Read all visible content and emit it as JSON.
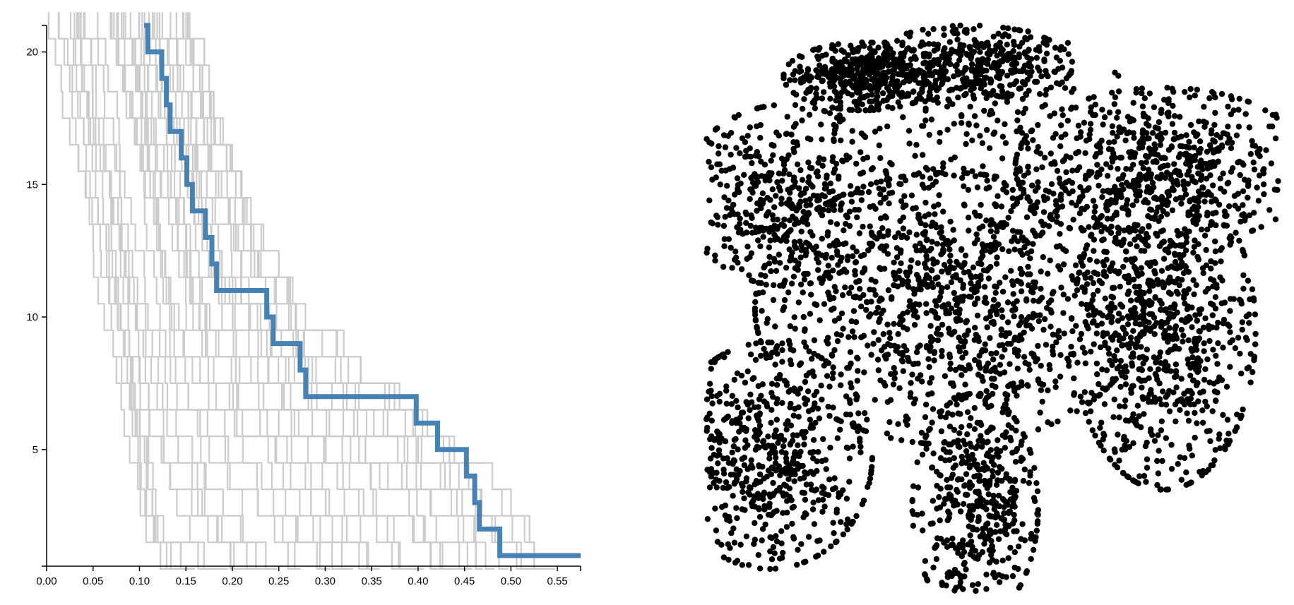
{
  "chart_data": [
    {
      "type": "step-line",
      "description_visible": "Persistence-style staircase plot: many light gray step traces with one highlighted blue trace",
      "title": "",
      "xlabel": "",
      "ylabel": "",
      "xlim": [
        0.0,
        0.575
      ],
      "ylim": [
        0.6,
        21.0
      ],
      "x_ticks": [
        0.0,
        0.05,
        0.1,
        0.15,
        0.2,
        0.25,
        0.3,
        0.35,
        0.4,
        0.45,
        0.5,
        0.55
      ],
      "x_tick_labels": [
        "0.00",
        "0.05",
        "0.10",
        "0.15",
        "0.20",
        "0.25",
        "0.30",
        "0.35",
        "0.40",
        "0.45",
        "0.50",
        "0.55"
      ],
      "y_ticks": [
        5,
        10,
        15,
        20
      ],
      "y_tick_labels": [
        "5",
        "10",
        "15",
        "20"
      ],
      "grid": false,
      "legend": "none",
      "colors": {
        "background_traces": "#cccccc",
        "highlight_trace": "#4682b4",
        "axis": "#000000"
      },
      "highlight_series": {
        "x": [
          0.105,
          0.109,
          0.109,
          0.124,
          0.124,
          0.129,
          0.129,
          0.133,
          0.133,
          0.145,
          0.145,
          0.151,
          0.151,
          0.157,
          0.157,
          0.171,
          0.171,
          0.178,
          0.178,
          0.183,
          0.183,
          0.237,
          0.237,
          0.244,
          0.244,
          0.273,
          0.273,
          0.279,
          0.279,
          0.398,
          0.398,
          0.421,
          0.421,
          0.452,
          0.452,
          0.461,
          0.461,
          0.466,
          0.466,
          0.488,
          0.488,
          0.575
        ],
        "y": [
          21.0,
          21.0,
          20.0,
          20.0,
          19.0,
          19.0,
          18.0,
          18.0,
          17.0,
          17.0,
          16.0,
          16.0,
          15.0,
          15.0,
          14.0,
          14.0,
          13.0,
          13.0,
          12.0,
          12.0,
          11.0,
          11.0,
          10.0,
          10.0,
          9.0,
          9.0,
          8.0,
          8.0,
          7.0,
          7.0,
          6.0,
          6.0,
          5.0,
          5.0,
          4.0,
          4.0,
          3.0,
          3.0,
          2.0,
          2.0,
          1.0,
          1.0
        ]
      },
      "background_series": {
        "count": 40,
        "levels": [
          21,
          20,
          19,
          18,
          17,
          16,
          15,
          14,
          13,
          12,
          11,
          10,
          9,
          8,
          7,
          6,
          5,
          4,
          3,
          2,
          1
        ],
        "level_ranges_x": [
          [
            0.0,
            0.16
          ],
          [
            0.0,
            0.17
          ],
          [
            0.0,
            0.175
          ],
          [
            0.0,
            0.18
          ],
          [
            0.0,
            0.19
          ],
          [
            0.0,
            0.2
          ],
          [
            0.0,
            0.21
          ],
          [
            0.0,
            0.22
          ],
          [
            0.0,
            0.235
          ],
          [
            0.0,
            0.25
          ],
          [
            0.0,
            0.265
          ],
          [
            0.0,
            0.28
          ],
          [
            0.0,
            0.32
          ],
          [
            0.0,
            0.34
          ],
          [
            0.0,
            0.38
          ],
          [
            0.02,
            0.41
          ],
          [
            0.025,
            0.45
          ],
          [
            0.03,
            0.48
          ],
          [
            0.04,
            0.5
          ],
          [
            0.05,
            0.52
          ],
          [
            0.09,
            0.525
          ]
        ]
      }
    },
    {
      "type": "scatter",
      "description_visible": "Dense 2-D embedding scatter of black dots forming several clusters",
      "title": "",
      "xlabel": "",
      "ylabel": "",
      "xlim": [
        -100,
        100
      ],
      "ylim": [
        -100,
        100
      ],
      "axes_visible": false,
      "grid": false,
      "legend": "none",
      "point_color": "#000000",
      "point_count": 5200,
      "clusters": [
        {
          "center": [
            -45,
            82
          ],
          "spread": [
            14,
            6
          ],
          "share": 0.08
        },
        {
          "center": [
            -8,
            86
          ],
          "spread": [
            18,
            7
          ],
          "share": 0.08
        },
        {
          "center": [
            60,
            50
          ],
          "spread": [
            26,
            14
          ],
          "share": 0.12
        },
        {
          "center": [
            -72,
            40
          ],
          "spread": [
            18,
            16
          ],
          "share": 0.09
        },
        {
          "center": [
            -15,
            0
          ],
          "spread": [
            34,
            24
          ],
          "share": 0.22
        },
        {
          "center": [
            60,
            -8
          ],
          "spread": [
            16,
            28
          ],
          "share": 0.15
        },
        {
          "center": [
            -78,
            -52
          ],
          "spread": [
            18,
            20
          ],
          "share": 0.12
        },
        {
          "center": [
            -6,
            -70
          ],
          "spread": [
            11,
            20
          ],
          "share": 0.09
        },
        {
          "center": [
            0,
            55
          ],
          "spread": [
            28,
            22
          ],
          "share": 0.05
        }
      ]
    }
  ]
}
